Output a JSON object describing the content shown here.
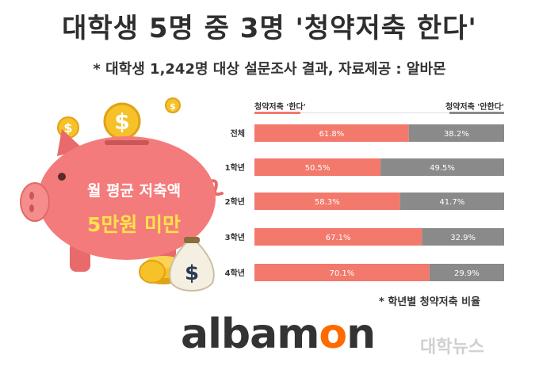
{
  "header": {
    "title": "대학생 5명 중 3명 '청약저축 한다'",
    "subtitle": "* 대학생 1,242명 대상 설문조사 결과, 자료제공 : 알바몬"
  },
  "illustration": {
    "line1": "월 평균 저축액",
    "line2": "5만원 미만",
    "coin_symbol": "$"
  },
  "chart_data": {
    "type": "bar",
    "stacked": true,
    "orientation": "horizontal",
    "categories": [
      "전체",
      "1학년",
      "2학년",
      "3학년",
      "4학년"
    ],
    "series": [
      {
        "name": "청약저축 '한다'",
        "values": [
          61.8,
          50.5,
          58.3,
          67.1,
          70.1
        ],
        "color": "#f2796b",
        "labels": [
          "61.8%",
          "50.5%",
          "58.3%",
          "67.1%",
          "70.1%"
        ]
      },
      {
        "name": "청약저축 '안한다'",
        "values": [
          38.2,
          49.5,
          41.7,
          32.9,
          29.9
        ],
        "color": "#8a8a8a",
        "labels": [
          "38.2%",
          "49.5%",
          "41.7%",
          "32.9%",
          "29.9%"
        ]
      }
    ],
    "xlim": [
      0,
      100
    ],
    "legend_position": "top"
  },
  "footer": {
    "note": "* 학년별 청약저축 비율",
    "logo_part1": "albam",
    "logo_part2": "o",
    "logo_part3": "n",
    "watermark": "대학뉴스"
  },
  "colors": {
    "yes": "#f2796b",
    "no": "#8a8a8a",
    "pig": "#f47b7b",
    "coin": "#f7c12a",
    "logo_accent": "#ff6a00"
  }
}
